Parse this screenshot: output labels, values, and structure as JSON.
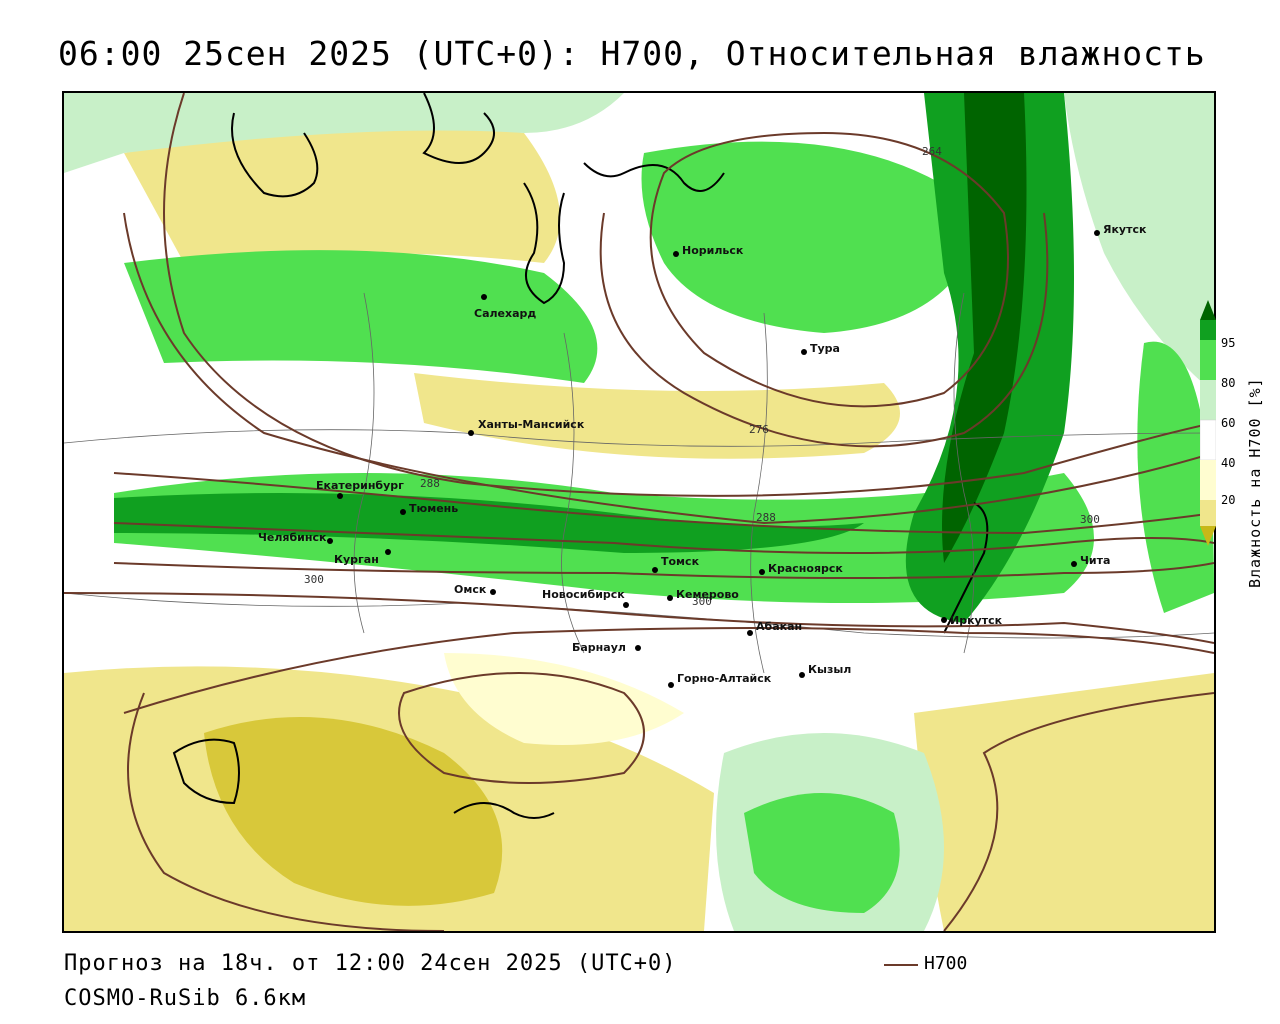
{
  "title": "06:00 25сен 2025 (UTC+0): H700, Относительная влажность",
  "footer": {
    "forecast": "Прогноз на 18ч. от 12:00 24сен 2025 (UTC+0)",
    "model": "COSMO-RuSib 6.6км"
  },
  "legend": {
    "line_label": "H700",
    "line_color": "#6b3a2a"
  },
  "colorbar": {
    "title": "Влажность на H700 [%]",
    "ticks": [
      "95",
      "80",
      "60",
      "40",
      "20"
    ],
    "colors": {
      "very_dry": "#c8b818",
      "dry": "#f0e68c",
      "light_dry": "#fffdd0",
      "neutral": "#ffffff",
      "light_wet": "#c8f0c8",
      "wet": "#50e050",
      "very_wet": "#10a020",
      "saturated": "#006400"
    }
  },
  "cities": [
    {
      "name": "Якутск"
    },
    {
      "name": "Норильск"
    },
    {
      "name": "Салехард"
    },
    {
      "name": "Тура"
    },
    {
      "name": "Ханты-Мансийск"
    },
    {
      "name": "Екатеринбург"
    },
    {
      "name": "Тюмень"
    },
    {
      "name": "Челябинск"
    },
    {
      "name": "Курган"
    },
    {
      "name": "Омск"
    },
    {
      "name": "Новосибирск"
    },
    {
      "name": "Томск"
    },
    {
      "name": "Кемерово"
    },
    {
      "name": "Красноярск"
    },
    {
      "name": "Барнаул"
    },
    {
      "name": "Абакан"
    },
    {
      "name": "Горно-Алтайск"
    },
    {
      "name": "Кызыл"
    },
    {
      "name": "Иркутск"
    },
    {
      "name": "Чита"
    }
  ],
  "contour_labels": [
    "264",
    "276",
    "288",
    "288",
    "300",
    "300",
    "300"
  ]
}
